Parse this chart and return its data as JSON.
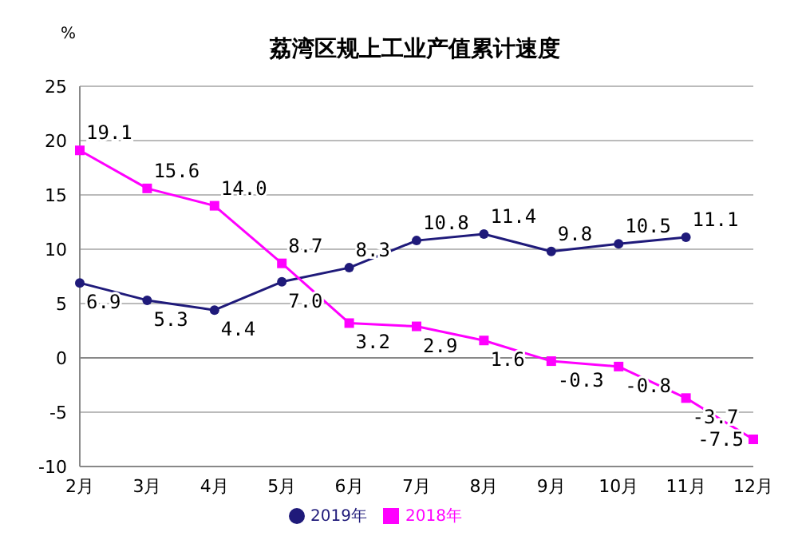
{
  "chart_data": {
    "type": "line",
    "title": "荔湾区规上工业产值累计速度",
    "ylabel": "%",
    "categories": [
      "2月",
      "3月",
      "4月",
      "5月",
      "6月",
      "7月",
      "8月",
      "9月",
      "10月",
      "11月",
      "12月"
    ],
    "series": [
      {
        "name": "2019年",
        "color": "#1f1a7a",
        "marker": "circle",
        "values": [
          6.9,
          5.3,
          4.4,
          7.0,
          8.3,
          10.8,
          11.4,
          9.8,
          10.5,
          11.1,
          null
        ],
        "value_labels": [
          "6.9",
          "5.3",
          "4.4",
          "7.0",
          "8.3",
          "10.8",
          "11.4",
          "9.8",
          "10.5",
          "11.1",
          null
        ]
      },
      {
        "name": "2018年",
        "color": "#ff00ff",
        "marker": "square",
        "values": [
          19.1,
          15.6,
          14.0,
          8.7,
          3.2,
          2.9,
          1.6,
          -0.3,
          -0.8,
          -3.7,
          -7.5
        ],
        "value_labels": [
          "19.1",
          "15.6",
          "14.0",
          "8.7",
          "3.2",
          "2.9",
          "1.6",
          "-0.3",
          "-0.8",
          "-3.7",
          "-7.5"
        ]
      }
    ],
    "ylim": [
      -10,
      25
    ],
    "yticks": [
      -10,
      -5,
      0,
      5,
      10,
      15,
      20,
      25
    ],
    "grid": "y",
    "legend": "bottom"
  }
}
